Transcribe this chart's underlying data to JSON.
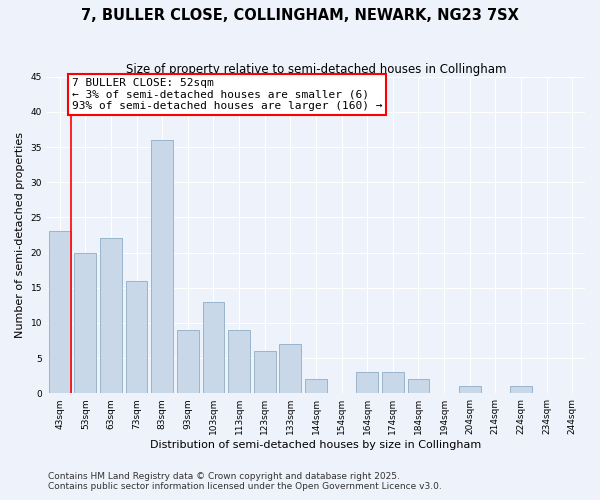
{
  "title": "7, BULLER CLOSE, COLLINGHAM, NEWARK, NG23 7SX",
  "subtitle": "Size of property relative to semi-detached houses in Collingham",
  "xlabel": "Distribution of semi-detached houses by size in Collingham",
  "ylabel": "Number of semi-detached properties",
  "bar_labels": [
    "43sqm",
    "53sqm",
    "63sqm",
    "73sqm",
    "83sqm",
    "93sqm",
    "103sqm",
    "113sqm",
    "123sqm",
    "133sqm",
    "144sqm",
    "154sqm",
    "164sqm",
    "174sqm",
    "184sqm",
    "194sqm",
    "204sqm",
    "214sqm",
    "224sqm",
    "234sqm",
    "244sqm"
  ],
  "bar_values": [
    23,
    20,
    22,
    16,
    36,
    9,
    13,
    9,
    6,
    7,
    2,
    0,
    3,
    3,
    2,
    0,
    1,
    0,
    1,
    0,
    0
  ],
  "bar_color": "#c8d8e8",
  "bar_edge_color": "#9ab4cc",
  "annotation_title": "7 BULLER CLOSE: 52sqm",
  "annotation_line1": "← 3% of semi-detached houses are smaller (6)",
  "annotation_line2": "93% of semi-detached houses are larger (160) →",
  "ylim": [
    0,
    45
  ],
  "background_color": "#eef2fb",
  "grid_color": "#ffffff",
  "footer1": "Contains HM Land Registry data © Crown copyright and database right 2025.",
  "footer2": "Contains public sector information licensed under the Open Government Licence v3.0.",
  "title_fontsize": 10.5,
  "subtitle_fontsize": 8.5,
  "axis_label_fontsize": 8,
  "tick_fontsize": 6.5,
  "annotation_fontsize": 8,
  "footer_fontsize": 6.5
}
